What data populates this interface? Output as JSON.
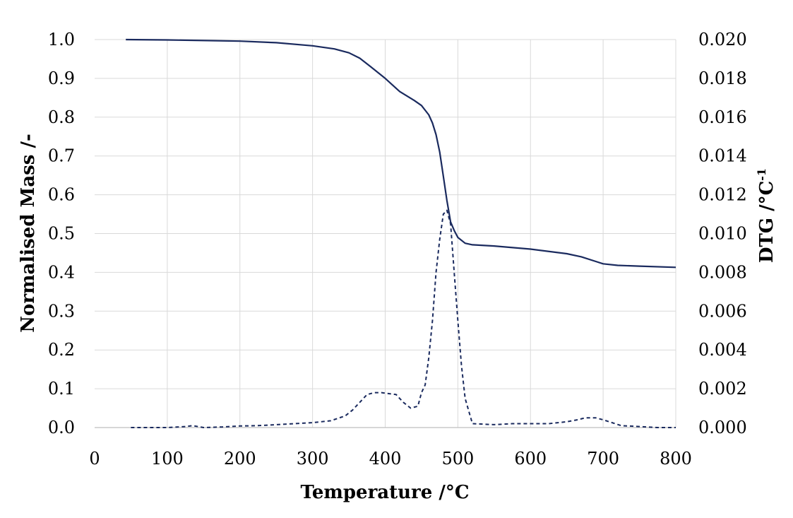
{
  "chart_data": {
    "type": "line",
    "title": "",
    "xlabel": "Temperature /°C",
    "ylabel": "Normalised Mass /-",
    "y2label_main": "DTG  /°C",
    "y2label_sup": "-1",
    "xlim": [
      0,
      800
    ],
    "ylim": [
      0.0,
      1.0
    ],
    "y2lim": [
      0.0,
      0.02
    ],
    "x_ticks": [
      "0",
      "100",
      "200",
      "300",
      "400",
      "500",
      "600",
      "700",
      "800"
    ],
    "y_ticks": [
      "0.0",
      "0.1",
      "0.2",
      "0.3",
      "0.4",
      "0.5",
      "0.6",
      "0.7",
      "0.8",
      "0.9",
      "1.0"
    ],
    "y2_ticks": [
      "0.000",
      "0.002",
      "0.004",
      "0.006",
      "0.008",
      "0.010",
      "0.012",
      "0.014",
      "0.016",
      "0.018",
      "0.020"
    ],
    "grid": true,
    "legend": "none",
    "line_color": "#1a2a5e",
    "series": [
      {
        "axis": "left",
        "style": "solid",
        "x": [
          43,
          100,
          200,
          250,
          300,
          330,
          350,
          365,
          380,
          400,
          420,
          440,
          450,
          460,
          465,
          470,
          475,
          480,
          485,
          490,
          495,
          500,
          510,
          520,
          550,
          600,
          650,
          670,
          690,
          700,
          720,
          750,
          800
        ],
        "y": [
          1.0,
          0.999,
          0.996,
          0.992,
          0.984,
          0.976,
          0.966,
          0.952,
          0.93,
          0.9,
          0.866,
          0.843,
          0.83,
          0.806,
          0.785,
          0.755,
          0.71,
          0.648,
          0.585,
          0.53,
          0.508,
          0.49,
          0.475,
          0.471,
          0.468,
          0.46,
          0.448,
          0.44,
          0.428,
          0.422,
          0.418,
          0.416,
          0.413
        ]
      },
      {
        "axis": "right",
        "style": "dashed",
        "x": [
          50,
          75,
          100,
          125,
          135,
          150,
          175,
          200,
          225,
          250,
          275,
          300,
          325,
          345,
          355,
          365,
          375,
          385,
          395,
          405,
          415,
          425,
          435,
          445,
          450,
          455,
          460,
          465,
          470,
          475,
          480,
          485,
          490,
          495,
          500,
          505,
          510,
          520,
          550,
          575,
          600,
          625,
          650,
          665,
          675,
          690,
          700,
          725,
          750,
          775,
          800
        ],
        "y": [
          0.0,
          0.0,
          0.0,
          5e-05,
          0.0001,
          0.0,
          3e-05,
          8e-05,
          0.0001,
          0.00015,
          0.0002,
          0.00025,
          0.00035,
          0.0006,
          0.0009,
          0.0013,
          0.0017,
          0.0018,
          0.0018,
          0.00175,
          0.0017,
          0.0013,
          0.001,
          0.0011,
          0.0018,
          0.0022,
          0.0036,
          0.0055,
          0.008,
          0.0097,
          0.011,
          0.0112,
          0.0105,
          0.008,
          0.0055,
          0.0032,
          0.0015,
          0.0002,
          0.00015,
          0.0002,
          0.0002,
          0.0002,
          0.0003,
          0.0004,
          0.0005,
          0.0005,
          0.0004,
          0.0001,
          5e-05,
          0.0,
          0.0
        ]
      }
    ]
  }
}
